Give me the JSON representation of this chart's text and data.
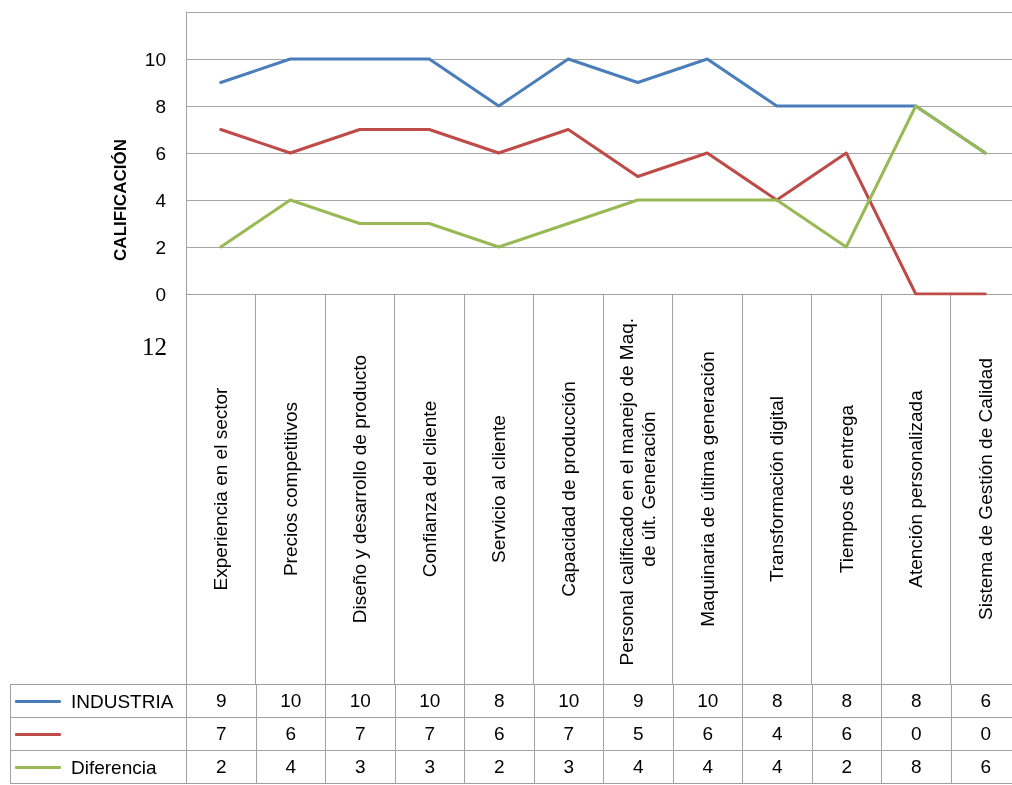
{
  "chart_data": {
    "type": "line",
    "ylabel": "CALIFICACIÓN",
    "categories": [
      "Experiencia en el sector",
      "Precios competitivos",
      "Diseño y desarrollo de producto",
      "Confianza del cliente",
      "Servicio al cliente",
      "Capacidad de producción",
      "Personal calificado en el manejo de Maq. de últ. Generación",
      "Maquinaria de última generación",
      "Transformación digital",
      "Tiempos de entrega",
      "Atención personalizada",
      "Sistema de Gestión de Calidad"
    ],
    "series": [
      {
        "name": "INDUSTRIA",
        "color": "#4a7ebb",
        "values": [
          9,
          10,
          10,
          10,
          8,
          10,
          9,
          10,
          8,
          8,
          8,
          6
        ]
      },
      {
        "color": "#be4b48",
        "values": [
          7,
          6,
          7,
          7,
          6,
          7,
          5,
          6,
          4,
          6,
          0,
          0
        ]
      },
      {
        "name": "Diferencia",
        "color": "#98b954",
        "values": [
          2,
          4,
          3,
          3,
          2,
          3,
          4,
          4,
          4,
          2,
          8,
          6
        ]
      }
    ],
    "ylim": [
      0,
      12
    ],
    "yticks": [
      0,
      2,
      4,
      6,
      8,
      10,
      {
        "value": 12,
        "label": null
      }
    ],
    "grid": "y",
    "legend": "bottom left",
    "data_labels": true,
    "annotations": [
      "12"
    ]
  }
}
